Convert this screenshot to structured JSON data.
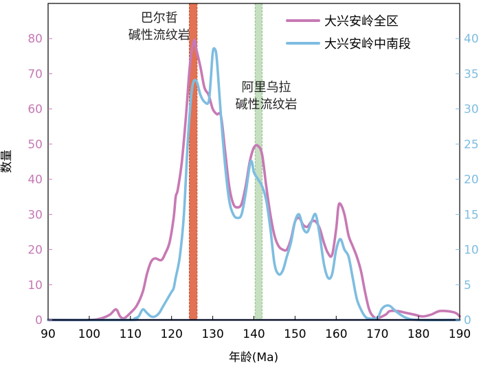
{
  "chart_data": {
    "type": "line",
    "title": "",
    "xlabel": "年龄(Ma)",
    "ylabel_left": "数量",
    "ylabel_right": "",
    "xlim": [
      90,
      190
    ],
    "ylim_left": [
      0,
      90
    ],
    "ylim_right": [
      0,
      45
    ],
    "x_ticks": [
      90,
      100,
      110,
      120,
      130,
      140,
      150,
      160,
      170,
      180,
      190
    ],
    "y_left_ticks": [
      0,
      10,
      20,
      30,
      40,
      50,
      60,
      70,
      80
    ],
    "y_right_ticks": [
      0,
      5,
      10,
      15,
      20,
      25,
      30,
      35,
      40
    ],
    "legend_position": "top-right",
    "grid": false,
    "series": [
      {
        "name": "大兴安岭全区",
        "axis": "left",
        "color": "#c779b4",
        "points": [
          [
            90,
            0
          ],
          [
            100,
            0
          ],
          [
            103,
            0.5
          ],
          [
            105,
            1.5
          ],
          [
            106.5,
            3
          ],
          [
            107.5,
            1
          ],
          [
            108.5,
            0.5
          ],
          [
            110,
            2
          ],
          [
            111.5,
            4
          ],
          [
            113,
            8
          ],
          [
            114,
            13
          ],
          [
            115,
            16.5
          ],
          [
            116,
            17.5
          ],
          [
            117.5,
            17
          ],
          [
            118.5,
            19
          ],
          [
            119.5,
            22
          ],
          [
            120.5,
            29
          ],
          [
            121,
            35
          ],
          [
            121.5,
            37
          ],
          [
            122.5,
            45
          ],
          [
            123.5,
            58
          ],
          [
            124.5,
            73
          ],
          [
            125.5,
            79.5
          ],
          [
            126,
            77
          ],
          [
            127,
            72
          ],
          [
            128,
            66
          ],
          [
            129,
            64
          ],
          [
            130,
            60
          ],
          [
            131,
            58.5
          ],
          [
            132,
            58
          ],
          [
            133,
            48
          ],
          [
            134,
            38
          ],
          [
            135,
            33
          ],
          [
            136,
            32
          ],
          [
            137,
            33
          ],
          [
            138,
            38
          ],
          [
            139,
            45
          ],
          [
            140,
            49
          ],
          [
            141,
            49.5
          ],
          [
            142,
            47
          ],
          [
            143,
            38
          ],
          [
            144,
            30
          ],
          [
            145,
            24
          ],
          [
            146,
            21
          ],
          [
            147,
            20
          ],
          [
            148,
            20
          ],
          [
            149,
            23
          ],
          [
            150,
            28
          ],
          [
            151,
            29
          ],
          [
            152,
            27
          ],
          [
            153,
            26.5
          ],
          [
            154,
            28
          ],
          [
            155,
            28
          ],
          [
            156,
            26
          ],
          [
            157,
            22
          ],
          [
            158,
            19
          ],
          [
            159,
            18.5
          ],
          [
            160,
            26
          ],
          [
            160.5,
            32
          ],
          [
            161,
            33
          ],
          [
            162,
            30
          ],
          [
            163,
            24
          ],
          [
            164,
            21
          ],
          [
            165,
            18
          ],
          [
            166,
            14
          ],
          [
            167,
            8
          ],
          [
            168,
            3
          ],
          [
            169,
            1
          ],
          [
            170,
            0.5
          ],
          [
            172,
            1.5
          ],
          [
            173,
            2.5
          ],
          [
            175,
            2.5
          ],
          [
            177,
            2
          ],
          [
            179,
            1.5
          ],
          [
            181,
            1
          ],
          [
            183,
            1.5
          ],
          [
            185,
            2.5
          ],
          [
            187,
            2.5
          ],
          [
            189,
            2
          ],
          [
            190,
            1
          ]
        ]
      },
      {
        "name": "大兴安岭中南段",
        "axis": "right",
        "color": "#7ebde0",
        "points": [
          [
            90,
            0
          ],
          [
            110,
            0
          ],
          [
            111,
            0.2
          ],
          [
            112,
            0.5
          ],
          [
            113,
            1.5
          ],
          [
            114,
            1
          ],
          [
            115,
            0.5
          ],
          [
            116,
            0.5
          ],
          [
            117,
            1
          ],
          [
            118,
            2
          ],
          [
            119,
            3
          ],
          [
            120,
            4
          ],
          [
            120.5,
            4.5
          ],
          [
            121,
            6
          ],
          [
            122,
            9
          ],
          [
            123,
            15
          ],
          [
            124,
            26
          ],
          [
            125,
            33
          ],
          [
            126,
            34
          ],
          [
            127,
            32
          ],
          [
            128,
            31
          ],
          [
            129,
            31
          ],
          [
            129.5,
            34
          ],
          [
            130,
            38
          ],
          [
            130.5,
            38.5
          ],
          [
            131,
            37
          ],
          [
            132,
            29
          ],
          [
            133,
            22
          ],
          [
            134,
            17
          ],
          [
            135,
            15
          ],
          [
            136,
            14.5
          ],
          [
            137,
            15
          ],
          [
            138,
            18
          ],
          [
            139,
            22
          ],
          [
            139.5,
            22.5
          ],
          [
            140,
            21
          ],
          [
            141,
            20
          ],
          [
            142,
            19
          ],
          [
            143,
            17
          ],
          [
            144,
            13
          ],
          [
            145,
            8
          ],
          [
            146,
            6.5
          ],
          [
            147,
            7
          ],
          [
            148,
            9
          ],
          [
            149,
            11
          ],
          [
            150,
            14
          ],
          [
            151,
            15
          ],
          [
            152,
            13
          ],
          [
            153,
            12.5
          ],
          [
            154,
            14
          ],
          [
            155,
            15
          ],
          [
            156,
            12
          ],
          [
            157,
            8
          ],
          [
            158,
            6
          ],
          [
            159,
            6.5
          ],
          [
            160,
            10
          ],
          [
            161,
            11.5
          ],
          [
            162,
            10
          ],
          [
            163,
            9
          ],
          [
            164,
            6
          ],
          [
            165,
            3
          ],
          [
            166,
            1.5
          ],
          [
            167,
            0.5
          ],
          [
            168,
            0.2
          ],
          [
            170,
            0.3
          ],
          [
            171,
            1.5
          ],
          [
            172,
            2
          ],
          [
            173,
            2
          ],
          [
            174,
            1.5
          ],
          [
            175,
            1
          ],
          [
            177,
            0.3
          ],
          [
            180,
            0
          ],
          [
            190,
            0
          ]
        ]
      }
    ],
    "bands": [
      {
        "x0": 124.3,
        "x1": 126.2,
        "color": "#e06a4a",
        "edge": "#c1502f",
        "label_lines": [
          "巴尔哲",
          "碱性流纹岩"
        ],
        "label_x": 117
      },
      {
        "x0": 140.3,
        "x1": 142.0,
        "color": "#b7d7b0",
        "edge": "#8fbf86",
        "label_lines": [
          "阿里乌拉",
          "碱性流纹岩"
        ],
        "label_x": 143
      }
    ],
    "left_axis_color": "#c779b4",
    "right_axis_color": "#7ebde0"
  }
}
